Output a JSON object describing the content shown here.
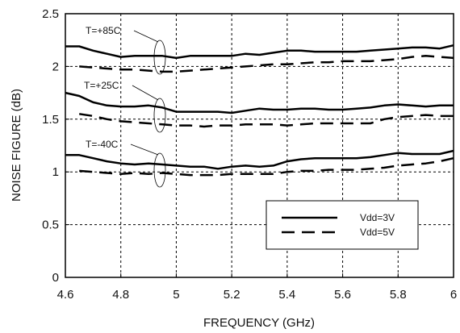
{
  "chart_data": {
    "type": "line",
    "xlabel": "FREQUENCY (GHz)",
    "ylabel": "NOISE FIGURE (dB)",
    "xlim": [
      4.6,
      6.0
    ],
    "ylim": [
      0,
      2.5
    ],
    "x_ticks": [
      "4.6",
      "4.8",
      "5",
      "5.2",
      "5.4",
      "5.6",
      "5.8",
      "6"
    ],
    "y_ticks": [
      "0",
      "0.5",
      "1",
      "1.5",
      "2",
      "2.5"
    ],
    "grid": "dotted",
    "legend_position": "bottom-right",
    "legend": [
      {
        "label": "Vdd=3V",
        "style": "solid"
      },
      {
        "label": "Vdd=5V",
        "style": "dashed"
      }
    ],
    "annotations": [
      "T=+85C",
      "T=+25C",
      "T=-40C"
    ],
    "series": [
      {
        "group": "T=+85C",
        "supply": "Vdd=3V",
        "style": "solid",
        "x": [
          4.6,
          4.65,
          4.7,
          4.75,
          4.8,
          4.85,
          4.9,
          4.95,
          5.0,
          5.05,
          5.1,
          5.15,
          5.2,
          5.25,
          5.3,
          5.35,
          5.4,
          5.45,
          5.5,
          5.55,
          5.6,
          5.65,
          5.7,
          5.75,
          5.8,
          5.85,
          5.9,
          5.95,
          6.0
        ],
        "values": [
          2.19,
          2.19,
          2.15,
          2.12,
          2.09,
          2.1,
          2.1,
          2.1,
          2.08,
          2.1,
          2.1,
          2.1,
          2.1,
          2.12,
          2.11,
          2.13,
          2.15,
          2.15,
          2.14,
          2.14,
          2.14,
          2.14,
          2.15,
          2.16,
          2.17,
          2.18,
          2.18,
          2.17,
          2.2
        ]
      },
      {
        "group": "T=+85C",
        "supply": "Vdd=5V",
        "style": "dashed",
        "x": [
          4.65,
          4.7,
          4.75,
          4.8,
          4.85,
          4.9,
          4.95,
          5.0,
          5.05,
          5.1,
          5.15,
          5.2,
          5.25,
          5.3,
          5.35,
          5.4,
          5.45,
          5.5,
          5.55,
          5.6,
          5.65,
          5.7,
          5.75,
          5.8,
          5.85,
          5.9,
          5.95,
          6.0
        ],
        "values": [
          2.0,
          1.99,
          1.98,
          1.97,
          1.97,
          1.96,
          1.95,
          1.95,
          1.96,
          1.97,
          1.98,
          1.99,
          2.0,
          2.01,
          2.02,
          2.02,
          2.03,
          2.04,
          2.04,
          2.05,
          2.05,
          2.05,
          2.06,
          2.07,
          2.09,
          2.1,
          2.09,
          2.08
        ]
      },
      {
        "group": "T=+25C",
        "supply": "Vdd=3V",
        "style": "solid",
        "x": [
          4.6,
          4.65,
          4.7,
          4.75,
          4.8,
          4.85,
          4.9,
          4.95,
          5.0,
          5.05,
          5.1,
          5.15,
          5.2,
          5.25,
          5.3,
          5.35,
          5.4,
          5.45,
          5.5,
          5.55,
          5.6,
          5.65,
          5.7,
          5.75,
          5.8,
          5.85,
          5.9,
          5.95,
          6.0
        ],
        "values": [
          1.75,
          1.72,
          1.66,
          1.63,
          1.62,
          1.62,
          1.63,
          1.61,
          1.57,
          1.57,
          1.57,
          1.57,
          1.56,
          1.58,
          1.6,
          1.59,
          1.59,
          1.6,
          1.6,
          1.59,
          1.59,
          1.6,
          1.61,
          1.63,
          1.64,
          1.63,
          1.62,
          1.63,
          1.63
        ]
      },
      {
        "group": "T=+25C",
        "supply": "Vdd=5V",
        "style": "dashed",
        "x": [
          4.65,
          4.7,
          4.75,
          4.8,
          4.85,
          4.9,
          4.95,
          5.0,
          5.05,
          5.1,
          5.15,
          5.2,
          5.25,
          5.3,
          5.35,
          5.4,
          5.45,
          5.5,
          5.55,
          5.6,
          5.65,
          5.7,
          5.75,
          5.8,
          5.85,
          5.9,
          5.95,
          6.0
        ],
        "values": [
          1.55,
          1.53,
          1.5,
          1.48,
          1.47,
          1.46,
          1.45,
          1.44,
          1.44,
          1.43,
          1.44,
          1.44,
          1.45,
          1.45,
          1.45,
          1.44,
          1.45,
          1.46,
          1.46,
          1.46,
          1.46,
          1.46,
          1.5,
          1.52,
          1.53,
          1.54,
          1.53,
          1.53
        ]
      },
      {
        "group": "T=-40C",
        "supply": "Vdd=3V",
        "style": "solid",
        "x": [
          4.6,
          4.65,
          4.7,
          4.75,
          4.8,
          4.85,
          4.9,
          4.95,
          5.0,
          5.05,
          5.1,
          5.15,
          5.2,
          5.25,
          5.3,
          5.35,
          5.4,
          5.45,
          5.5,
          5.55,
          5.6,
          5.65,
          5.7,
          5.75,
          5.8,
          5.85,
          5.9,
          5.95,
          6.0
        ],
        "values": [
          1.16,
          1.16,
          1.13,
          1.1,
          1.08,
          1.07,
          1.08,
          1.07,
          1.06,
          1.05,
          1.05,
          1.03,
          1.05,
          1.06,
          1.05,
          1.06,
          1.1,
          1.12,
          1.13,
          1.13,
          1.13,
          1.13,
          1.14,
          1.16,
          1.18,
          1.17,
          1.17,
          1.17,
          1.2
        ]
      },
      {
        "group": "T=-40C",
        "supply": "Vdd=5V",
        "style": "dashed",
        "x": [
          4.65,
          4.7,
          4.75,
          4.8,
          4.85,
          4.9,
          4.95,
          5.0,
          5.05,
          5.1,
          5.15,
          5.2,
          5.25,
          5.3,
          5.35,
          5.4,
          5.45,
          5.5,
          5.55,
          5.6,
          5.65,
          5.7,
          5.75,
          5.8,
          5.85,
          5.9,
          5.95,
          6.0
        ],
        "values": [
          1.01,
          1.0,
          0.99,
          0.98,
          0.99,
          0.98,
          0.99,
          0.98,
          0.97,
          0.97,
          0.97,
          0.98,
          0.98,
          0.98,
          0.98,
          1.0,
          1.01,
          1.01,
          1.02,
          1.02,
          1.02,
          1.03,
          1.04,
          1.06,
          1.07,
          1.08,
          1.1,
          1.13
        ]
      }
    ]
  }
}
